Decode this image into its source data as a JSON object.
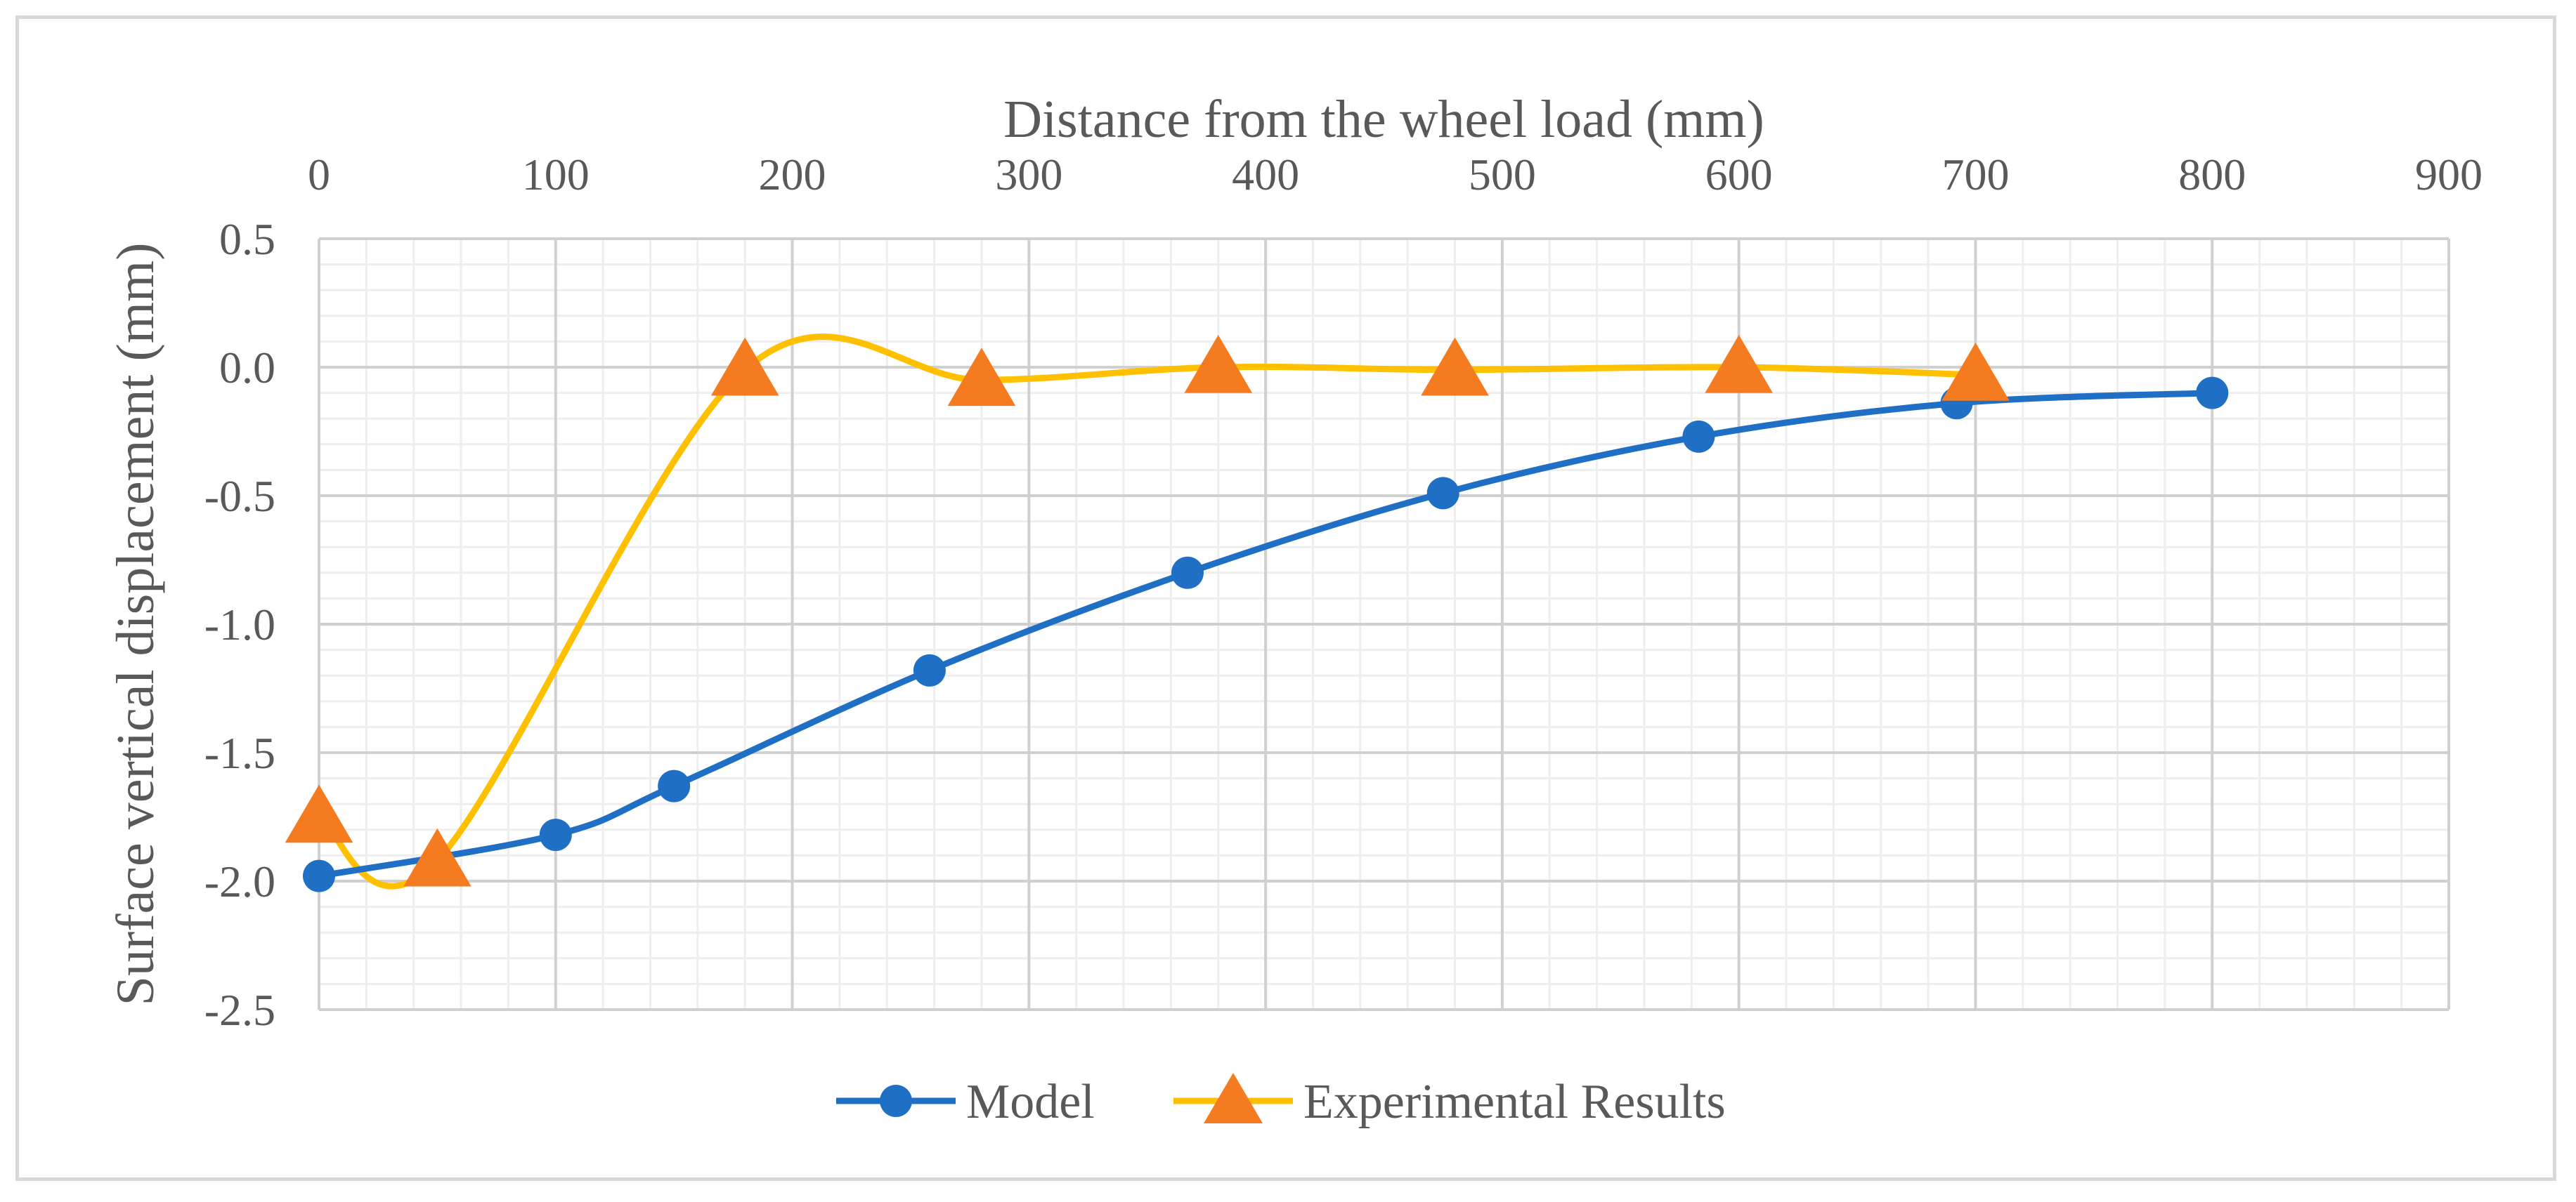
{
  "chart_data": {
    "type": "line",
    "title": "",
    "xlabel": "Distance from the wheel load (mm)",
    "ylabel": "Surface vertical displacement (mm)",
    "x_axis_position": "top",
    "xlim": [
      0,
      900
    ],
    "ylim": [
      -2.5,
      0.5
    ],
    "x_ticks": [
      "0",
      "100",
      "200",
      "300",
      "400",
      "500",
      "600",
      "700",
      "800",
      "900"
    ],
    "y_ticks": [
      "0.5",
      "0.0",
      "-0.5",
      "-1.0",
      "-1.5",
      "-2.0",
      "-2.5"
    ],
    "grid": true,
    "legend_position": "bottom",
    "series": [
      {
        "name": "Model",
        "color": "#1f6fc5",
        "marker": "circle",
        "smooth": true,
        "x": [
          0,
          100,
          150,
          258,
          367,
          475,
          583,
          692,
          800
        ],
        "y": [
          -1.98,
          -1.82,
          -1.63,
          -1.18,
          -0.8,
          -0.49,
          -0.27,
          -0.14,
          -0.1
        ]
      },
      {
        "name": "Experimental Results",
        "color": "#ffc000",
        "marker": "triangle",
        "marker_color": "#f47b20",
        "smooth": true,
        "x": [
          0,
          50,
          180,
          280,
          380,
          480,
          600,
          700
        ],
        "y": [
          -1.75,
          -1.92,
          -0.01,
          -0.05,
          0.0,
          -0.01,
          0.0,
          -0.03
        ]
      }
    ]
  }
}
